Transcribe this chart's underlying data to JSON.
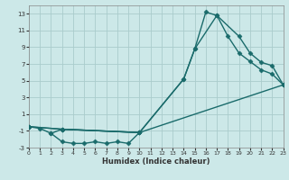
{
  "xlabel": "Humidex (Indice chaleur)",
  "background_color": "#cce8e8",
  "grid_color": "#aacccc",
  "line_color": "#1a6b6b",
  "marker": "D",
  "markersize": 2.5,
  "linewidth": 1.0,
  "xlim": [
    0,
    23
  ],
  "ylim": [
    -3,
    14
  ],
  "xticks": [
    0,
    1,
    2,
    3,
    4,
    5,
    6,
    7,
    8,
    9,
    10,
    11,
    12,
    13,
    14,
    15,
    16,
    17,
    18,
    19,
    20,
    21,
    22,
    23
  ],
  "yticks": [
    -3,
    -1,
    1,
    3,
    5,
    7,
    9,
    11,
    13
  ],
  "series": [
    {
      "x": [
        0,
        1,
        2,
        3,
        10,
        14,
        15,
        16,
        17,
        19,
        20,
        21,
        22,
        23
      ],
      "y": [
        -0.5,
        -0.7,
        -1.3,
        -0.8,
        -1.2,
        5.2,
        8.8,
        13.2,
        12.8,
        10.3,
        8.3,
        7.2,
        6.8,
        4.5
      ]
    },
    {
      "x": [
        0,
        3,
        10,
        14,
        15,
        17,
        18,
        19,
        20,
        21,
        22,
        23
      ],
      "y": [
        -0.5,
        -0.8,
        -1.2,
        5.2,
        8.8,
        12.8,
        10.3,
        8.3,
        7.3,
        6.3,
        5.8,
        4.5
      ]
    },
    {
      "x": [
        0,
        3,
        10,
        23
      ],
      "y": [
        -0.5,
        -0.8,
        -1.2,
        4.5
      ]
    },
    {
      "x": [
        2,
        3,
        4,
        5,
        6,
        7,
        8,
        9,
        10
      ],
      "y": [
        -1.3,
        -2.3,
        -2.5,
        -2.5,
        -2.3,
        -2.5,
        -2.3,
        -2.5,
        -1.2
      ]
    }
  ]
}
